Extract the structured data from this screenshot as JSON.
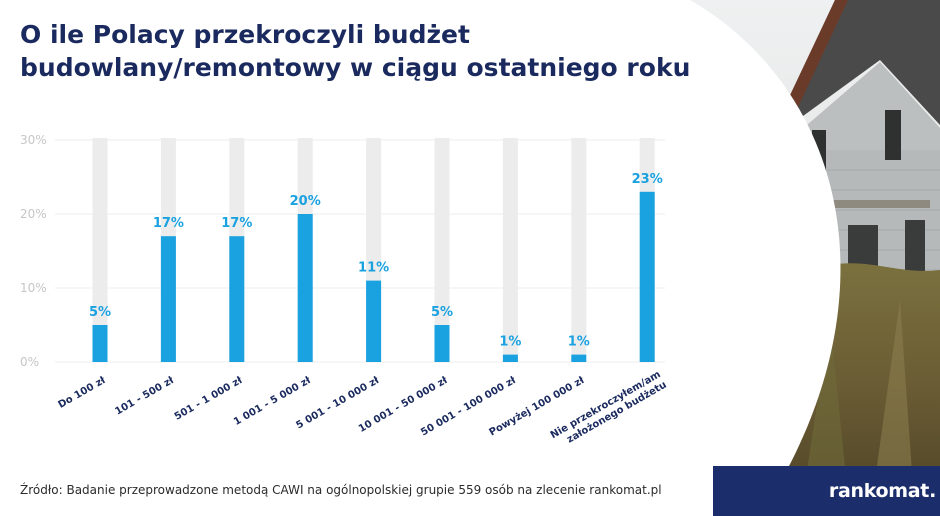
{
  "title_lines": [
    "O ile Polacy przekroczyli budżet",
    "budowlany/remontowy w ciągu ostatniego roku"
  ],
  "source": "Źródło: Badanie przeprowadzone metodą CAWI na ogólnopolskiej grupie 559 osób na zlecenie rankomat.pl",
  "brand": "rankomat.",
  "colors": {
    "title": "#1a2a5e",
    "bar": "#1aa1e0",
    "track": "#ececec",
    "axis_text": "#c6c6c6",
    "footer": "#1c2d6b"
  },
  "chart_data": {
    "type": "bar",
    "title": "O ile Polacy przekroczyli budżet budowlany/remontowy w ciągu ostatniego roku",
    "categories": [
      "Do 100 zł",
      "101 - 500 zł",
      "501 - 1 000 zł",
      "1 001 - 5 000 zł",
      "5 001 - 10 000 zł",
      "10 001 - 50 000 zł",
      "50 001 - 100 000 zł",
      "Powyżej 100 000 zł",
      "Nie przekroczyłem/am założonego budżetu"
    ],
    "values": [
      5,
      17,
      17,
      20,
      11,
      5,
      1,
      1,
      23
    ],
    "value_labels": [
      "5%",
      "17%",
      "17%",
      "20%",
      "11%",
      "5%",
      "1%",
      "1%",
      "23%"
    ],
    "ylim": [
      0,
      30
    ],
    "yticks": [
      "0%",
      "10%",
      "20%",
      "30%"
    ],
    "xlabel": "",
    "ylabel": "",
    "grid": true
  }
}
